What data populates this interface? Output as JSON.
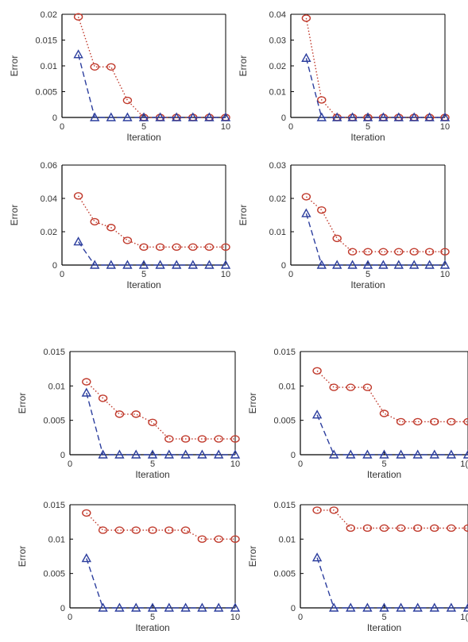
{
  "chart_data": [
    {
      "type": "line",
      "x": [
        1,
        2,
        3,
        4,
        5,
        6,
        7,
        8,
        9,
        10
      ],
      "xlim": [
        0,
        10
      ],
      "ylim": [
        0,
        0.02
      ],
      "xticks": [
        "0",
        "5",
        "10"
      ],
      "yticks": [
        "0",
        "0.005",
        "0.01",
        "0.015",
        "0.02"
      ],
      "xlabel": "Iteration",
      "ylabel": "Error",
      "grid": false,
      "series": [
        {
          "color": "#c0392b",
          "marker": "circle",
          "line": "dotted",
          "values": [
            0.0195,
            0.0098,
            0.0098,
            0.0033,
            0,
            0,
            0,
            0,
            0,
            0
          ]
        },
        {
          "color": "#2c3e9e",
          "marker": "triangle",
          "line": "dashed",
          "values": [
            0.0122,
            0,
            0,
            0,
            0,
            0,
            0,
            0,
            0,
            0
          ]
        }
      ]
    },
    {
      "type": "line",
      "x": [
        1,
        2,
        3,
        4,
        5,
        6,
        7,
        8,
        9,
        10
      ],
      "xlim": [
        0,
        10
      ],
      "ylim": [
        0,
        0.04
      ],
      "xticks": [
        "0",
        "5",
        "10"
      ],
      "yticks": [
        "0",
        "0.01",
        "0.02",
        "0.03",
        "0.04"
      ],
      "xlabel": "Iteration",
      "ylabel": "Error",
      "grid": false,
      "series": [
        {
          "color": "#c0392b",
          "marker": "circle",
          "line": "dotted",
          "values": [
            0.0385,
            0.0068,
            0,
            0,
            0,
            0,
            0,
            0,
            0,
            0
          ]
        },
        {
          "color": "#2c3e9e",
          "marker": "triangle",
          "line": "dashed",
          "values": [
            0.023,
            0,
            0,
            0,
            0,
            0,
            0,
            0,
            0,
            0
          ]
        }
      ]
    },
    {
      "type": "line",
      "x": [
        1,
        2,
        3,
        4,
        5,
        6,
        7,
        8,
        9,
        10
      ],
      "xlim": [
        0,
        10
      ],
      "ylim": [
        0,
        0.06
      ],
      "xticks": [
        "0",
        "5",
        "10"
      ],
      "yticks": [
        "0",
        "0.02",
        "0.04",
        "0.06"
      ],
      "xlabel": "Iteration",
      "ylabel": "Error",
      "grid": false,
      "series": [
        {
          "color": "#c0392b",
          "marker": "circle",
          "line": "dotted",
          "values": [
            0.0415,
            0.026,
            0.0225,
            0.0148,
            0.0108,
            0.0108,
            0.0108,
            0.0108,
            0.0108,
            0.0108
          ]
        },
        {
          "color": "#2c3e9e",
          "marker": "triangle",
          "line": "dashed",
          "values": [
            0.014,
            0,
            0,
            0,
            0,
            0,
            0,
            0,
            0,
            0
          ]
        }
      ]
    },
    {
      "type": "line",
      "x": [
        1,
        2,
        3,
        4,
        5,
        6,
        7,
        8,
        9,
        10
      ],
      "xlim": [
        0,
        10
      ],
      "ylim": [
        0,
        0.03
      ],
      "xticks": [
        "0",
        "5",
        "10"
      ],
      "yticks": [
        "0",
        "0.01",
        "0.02",
        "0.03"
      ],
      "xlabel": "Iteration",
      "ylabel": "Error",
      "grid": false,
      "series": [
        {
          "color": "#c0392b",
          "marker": "circle",
          "line": "dotted",
          "values": [
            0.0205,
            0.0165,
            0.008,
            0.004,
            0.004,
            0.004,
            0.004,
            0.004,
            0.004,
            0.004
          ]
        },
        {
          "color": "#2c3e9e",
          "marker": "triangle",
          "line": "dashed",
          "values": [
            0.0155,
            0,
            0,
            0,
            0,
            0,
            0,
            0,
            0,
            0
          ]
        }
      ]
    },
    {
      "type": "line",
      "x": [
        1,
        2,
        3,
        4,
        5,
        6,
        7,
        8,
        9,
        10
      ],
      "xlim": [
        0,
        10
      ],
      "ylim": [
        0,
        0.015
      ],
      "xticks": [
        "0",
        "5",
        "10"
      ],
      "yticks": [
        "0",
        "0.005",
        "0.01",
        "0.015"
      ],
      "xlabel": "Iteration",
      "ylabel": "Error",
      "grid": false,
      "series": [
        {
          "color": "#c0392b",
          "marker": "circle",
          "line": "dotted",
          "values": [
            0.0106,
            0.0082,
            0.0059,
            0.0059,
            0.0047,
            0.0023,
            0.0023,
            0.0023,
            0.0023,
            0.0023
          ]
        },
        {
          "color": "#2c3e9e",
          "marker": "triangle",
          "line": "dashed",
          "values": [
            0.009,
            0,
            0,
            0,
            0,
            0,
            0,
            0,
            0,
            0
          ]
        }
      ]
    },
    {
      "type": "line",
      "x": [
        1,
        2,
        3,
        4,
        5,
        6,
        7,
        8,
        9,
        10
      ],
      "xlim": [
        0,
        10
      ],
      "ylim": [
        0,
        0.015
      ],
      "xticks": [
        "0",
        "5",
        "1("
      ],
      "yticks": [
        "0",
        "0.005",
        "0.01",
        "0.015"
      ],
      "xlabel": "Iteration",
      "ylabel": "Error",
      "grid": false,
      "series": [
        {
          "color": "#c0392b",
          "marker": "circle",
          "line": "dotted",
          "values": [
            0.0122,
            0.0098,
            0.0098,
            0.0098,
            0.006,
            0.0048,
            0.0048,
            0.0048,
            0.0048,
            0.0048
          ]
        },
        {
          "color": "#2c3e9e",
          "marker": "triangle",
          "line": "dashed",
          "values": [
            0.0058,
            0,
            0,
            0,
            0,
            0,
            0,
            0,
            0,
            0
          ]
        }
      ]
    },
    {
      "type": "line",
      "x": [
        1,
        2,
        3,
        4,
        5,
        6,
        7,
        8,
        9,
        10
      ],
      "xlim": [
        0,
        10
      ],
      "ylim": [
        0,
        0.015
      ],
      "xticks": [
        "0",
        "5",
        "10"
      ],
      "yticks": [
        "0",
        "0.005",
        "0.01",
        "0.015"
      ],
      "xlabel": "Iteration",
      "ylabel": "Error",
      "grid": false,
      "series": [
        {
          "color": "#c0392b",
          "marker": "circle",
          "line": "dotted",
          "values": [
            0.0138,
            0.0113,
            0.0113,
            0.0113,
            0.0113,
            0.0113,
            0.0113,
            0.01,
            0.01,
            0.01
          ]
        },
        {
          "color": "#2c3e9e",
          "marker": "triangle",
          "line": "dashed",
          "values": [
            0.0072,
            0,
            0,
            0,
            0,
            0,
            0,
            0,
            0,
            0
          ]
        }
      ]
    },
    {
      "type": "line",
      "x": [
        1,
        2,
        3,
        4,
        5,
        6,
        7,
        8,
        9,
        10
      ],
      "xlim": [
        0,
        10
      ],
      "ylim": [
        0,
        0.015
      ],
      "xticks": [
        "0",
        "5",
        "1("
      ],
      "yticks": [
        "0",
        "0.005",
        "0.01",
        "0.015"
      ],
      "xlabel": "Iteration",
      "ylabel": "Error",
      "grid": false,
      "series": [
        {
          "color": "#c0392b",
          "marker": "circle",
          "line": "dotted",
          "values": [
            0.0142,
            0.0142,
            0.0116,
            0.0116,
            0.0116,
            0.0116,
            0.0116,
            0.0116,
            0.0116,
            0.0116
          ]
        },
        {
          "color": "#2c3e9e",
          "marker": "triangle",
          "line": "dashed",
          "values": [
            0.0073,
            0,
            0,
            0,
            0,
            0,
            0,
            0,
            0,
            0
          ]
        }
      ]
    }
  ]
}
